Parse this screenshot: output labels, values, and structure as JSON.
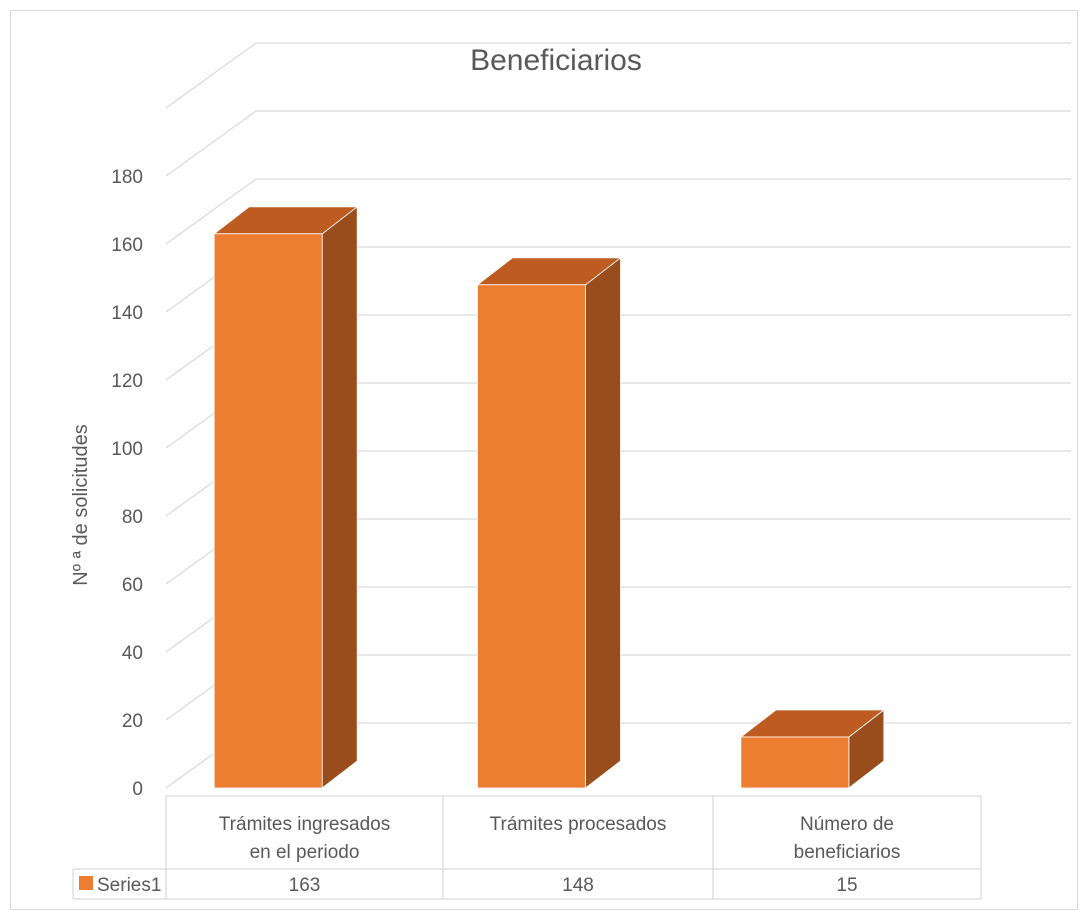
{
  "chart_data": {
    "type": "bar",
    "title": "Beneficiarios",
    "ylabel": "Nº ª de solicitudes",
    "xlabel": "",
    "categories": [
      [
        "Trámites ingresados",
        "en el periodo"
      ],
      [
        "Trámites procesados"
      ],
      [
        "Número de",
        "beneficiarios"
      ]
    ],
    "series": [
      {
        "name": "Series1",
        "values": [
          163,
          148,
          15
        ],
        "color": "#ED7D31",
        "top_color": "#BE5B20",
        "side_color": "#9A4D1C"
      }
    ],
    "yticks": [
      "0",
      "20",
      "40",
      "60",
      "80",
      "100",
      "120",
      "140",
      "160",
      "180"
    ],
    "ylim": [
      0,
      180
    ],
    "grid": true,
    "legend": "data-table",
    "data_table": true
  }
}
